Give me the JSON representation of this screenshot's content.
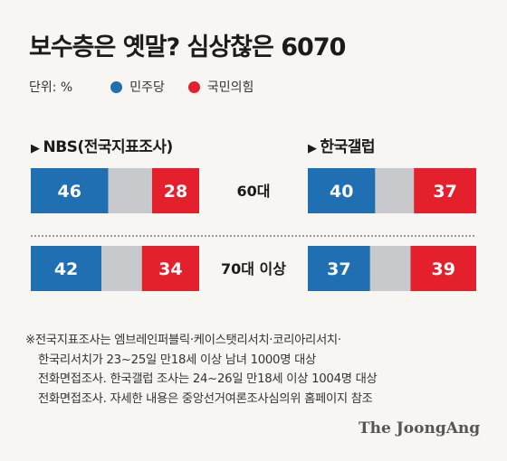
{
  "title": "보수층은 옛말? 심상찮은 6070",
  "legend": {
    "unit": "단위: %",
    "items": [
      {
        "label": "민주당",
        "color": "#1f6fb2"
      },
      {
        "label": "국민의힘",
        "color": "#e3202b"
      }
    ]
  },
  "groups": [
    {
      "title": "NBS(전국지표조사)"
    },
    {
      "title": "한국갤럽"
    }
  ],
  "chart_data": {
    "type": "bar",
    "orientation": "horizontal-stacked",
    "categories": [
      "60대",
      "70대 이상"
    ],
    "series": [
      {
        "name": "민주당",
        "color": "#1f6fb2",
        "NBS(전국지표조사)": [
          46,
          42
        ],
        "한국갤럽": [
          40,
          37
        ]
      },
      {
        "name": "국민의힘",
        "color": "#e3202b",
        "NBS(전국지표조사)": [
          28,
          34
        ],
        "한국갤럽": [
          37,
          39
        ]
      }
    ],
    "remainder_color": "#c7c9cc",
    "xlim": [
      0,
      100
    ]
  },
  "notes": [
    "※전국지표조사는 엠브레인퍼블릭·케이스탯리서치·코리아리서치·",
    "한국리서치가 23~25일 만18세 이상 남녀 1000명 대상",
    "전화면접조사. 한국갤럽 조사는 24~26일 만18세 이상 1004명 대상",
    "전화면접조사. 자세한 내용은 중앙선거여론조사심의위 홈페이지 참조"
  ],
  "brand": "The JoongAng"
}
